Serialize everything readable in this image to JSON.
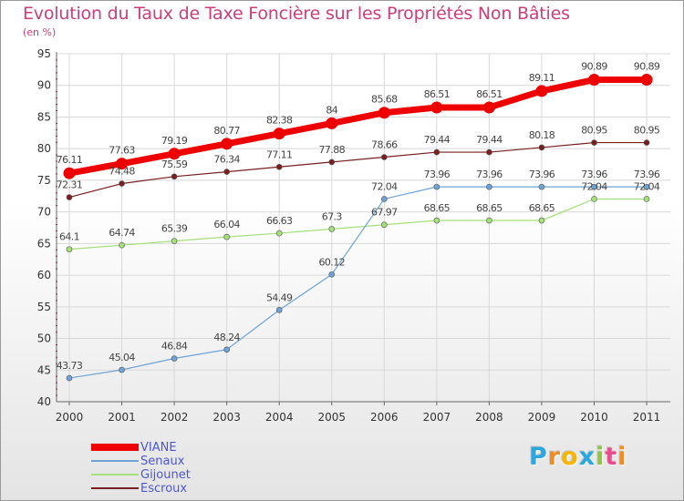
{
  "title": "Evolution du Taux de Taxe Foncière sur les Propriétés Non Bâties",
  "subtitle": "(en %)",
  "logo": {
    "text": "Proxiti",
    "letters": [
      "P",
      "r",
      "o",
      "x",
      "i",
      "t",
      "i"
    ],
    "colors": [
      "#2aa6e0",
      "#f28c1e",
      "#f7b500",
      "#2aa6e0",
      "#8dc63f",
      "#e94e8a",
      "#f28c1e"
    ]
  },
  "colors": {
    "grid": "#d8d8d8",
    "axis": "#666666",
    "tick_text": "#333333",
    "label_text": "#444444",
    "legend_text": "#4b57d1",
    "minor_tick": "#cc0033"
  },
  "chart_data": {
    "type": "line",
    "title": "Evolution du Taux de Taxe Foncière sur les Propriétés Non Bâties",
    "subtitle": "(en %)",
    "x": [
      2000,
      2001,
      2002,
      2003,
      2004,
      2005,
      2006,
      2007,
      2008,
      2009,
      2010,
      2011
    ],
    "ylim": [
      40,
      95
    ],
    "yticks": [
      40,
      45,
      50,
      55,
      60,
      65,
      70,
      75,
      80,
      85,
      90,
      95
    ],
    "grid": true,
    "legend": "bottom-left",
    "series": [
      {
        "name": "VIANE",
        "color": "#ee0000",
        "values": [
          76.11,
          77.63,
          79.19,
          80.77,
          82.38,
          84,
          85.68,
          86.51,
          86.51,
          89.11,
          90.89,
          90.89
        ],
        "labels": [
          "76.11",
          "77.63",
          "79.19",
          "80.77",
          "82.38",
          "84",
          "85.68",
          "86.51",
          "86.51",
          "89.11",
          "90.89",
          "90.89"
        ]
      },
      {
        "name": "Senaux",
        "color": "#6fa3d6",
        "values": [
          43.73,
          45.04,
          46.84,
          48.24,
          54.49,
          60.12,
          72.04,
          73.96,
          73.96,
          73.96,
          73.96,
          73.96
        ],
        "labels": [
          "43.73",
          "45.04",
          "46.84",
          "48.24",
          "54.49",
          "60.12",
          "72.04",
          "73.96",
          "73.96",
          "73.96",
          "73.96",
          "73.96"
        ]
      },
      {
        "name": "Gijounet",
        "color": "#a6e07a",
        "values": [
          64.1,
          64.74,
          65.39,
          66.04,
          66.63,
          67.3,
          67.97,
          68.65,
          68.65,
          68.65,
          72.04,
          72.04
        ],
        "labels": [
          "64.1",
          "64.74",
          "65.39",
          "66.04",
          "66.63",
          "67.3",
          "67.97",
          "68.65",
          "68.65",
          "68.65",
          "72.04",
          "72.04"
        ]
      },
      {
        "name": "Escroux",
        "color": "#7a1f1f",
        "values": [
          72.31,
          74.48,
          75.59,
          76.34,
          77.11,
          77.88,
          78.66,
          79.44,
          79.44,
          80.18,
          80.95,
          80.95
        ],
        "labels": [
          "72.31",
          "74.48",
          "75.59",
          "76.34",
          "77.11",
          "77.88",
          "78.66",
          "79.44",
          "79.44",
          "80.18",
          "80.95",
          "80.95"
        ]
      }
    ]
  }
}
